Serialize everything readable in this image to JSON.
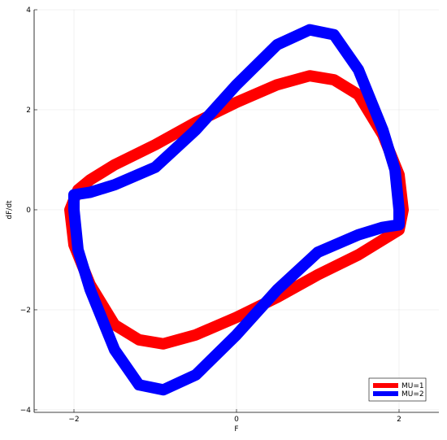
{
  "chart_data": {
    "type": "line",
    "x_label": "F",
    "y_label": "dF/dt",
    "xlim": [
      -2.49,
      2.49
    ],
    "ylim": [
      -4.05,
      4
    ],
    "xticks": [
      {
        "value": -2,
        "label": "−2"
      },
      0,
      2
    ],
    "yticks": [
      {
        "value": -4,
        "label": "−4"
      },
      {
        "value": -2,
        "label": "−2"
      },
      0,
      2,
      4
    ],
    "grid": true,
    "legend": "bottom-right",
    "series": [
      {
        "name": "MU=1",
        "color": "#ff0000",
        "x": [
          -1.95,
          -1.8,
          -1.5,
          -1.0,
          -0.5,
          0.0,
          0.5,
          0.9,
          1.2,
          1.5,
          1.8,
          2.0,
          2.05,
          2.0,
          1.8,
          1.5,
          1.0,
          0.5,
          0.0,
          -0.5,
          -0.9,
          -1.2,
          -1.5,
          -1.8,
          -2.0,
          -2.05,
          -1.95
        ],
        "values": [
          0.4,
          0.6,
          0.9,
          1.3,
          1.75,
          2.15,
          2.5,
          2.68,
          2.6,
          2.3,
          1.5,
          0.7,
          0.0,
          -0.4,
          -0.6,
          -0.9,
          -1.3,
          -1.75,
          -2.15,
          -2.5,
          -2.68,
          -2.6,
          -2.3,
          -1.5,
          -0.7,
          0.0,
          0.4
        ]
      },
      {
        "name": "MU=2",
        "color": "#0000ff",
        "x": [
          -2.0,
          -1.8,
          -1.5,
          -1.0,
          -0.5,
          0.0,
          0.5,
          0.9,
          1.2,
          1.5,
          1.8,
          1.95,
          2.0,
          2.0,
          1.8,
          1.5,
          1.0,
          0.5,
          0.0,
          -0.5,
          -0.9,
          -1.2,
          -1.5,
          -1.8,
          -1.95,
          -2.0,
          -2.0
        ],
        "values": [
          0.3,
          0.35,
          0.5,
          0.85,
          1.6,
          2.5,
          3.3,
          3.6,
          3.5,
          2.8,
          1.6,
          0.8,
          0.0,
          -0.3,
          -0.35,
          -0.5,
          -0.85,
          -1.6,
          -2.5,
          -3.3,
          -3.6,
          -3.5,
          -2.8,
          -1.6,
          -0.8,
          0.0,
          0.3
        ]
      }
    ]
  }
}
